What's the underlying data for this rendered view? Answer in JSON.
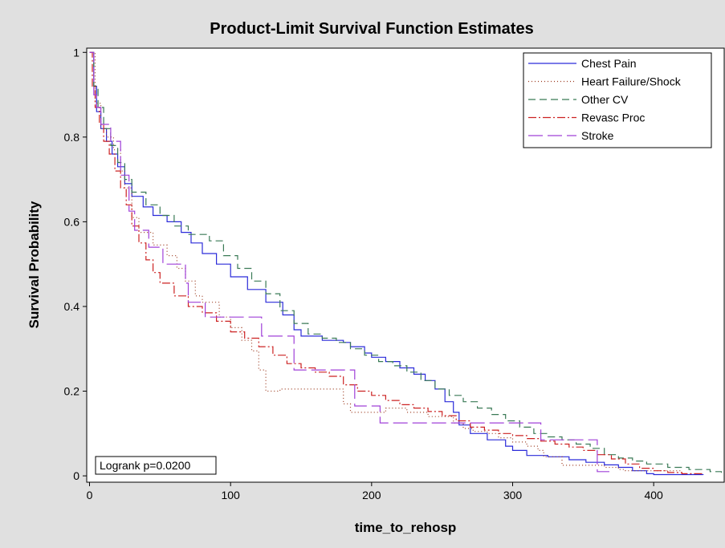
{
  "chart_data": {
    "type": "line",
    "title": "Product-Limit Survival Function Estimates",
    "xlabel": "time_to_rehosp",
    "ylabel": "Survival Probability",
    "xlim": [
      -2,
      450
    ],
    "ylim": [
      -0.015,
      1.01
    ],
    "xticks": [
      0,
      100,
      200,
      300,
      400
    ],
    "yticks": [
      0,
      0.2,
      0.4,
      0.6,
      0.8,
      1
    ],
    "ytick_labels": [
      "0",
      "0.2",
      "0.4",
      "0.6",
      "0.8",
      "1"
    ],
    "legend_position": "top-right",
    "annotation": "Logrank p=0.0200",
    "series": [
      {
        "name": "Chest Pain",
        "color": "#2b2bd9",
        "dash": "",
        "points": [
          [
            0,
            1
          ],
          [
            3,
            0.92
          ],
          [
            5,
            0.86
          ],
          [
            8,
            0.82
          ],
          [
            12,
            0.79
          ],
          [
            16,
            0.76
          ],
          [
            20,
            0.73
          ],
          [
            25,
            0.69
          ],
          [
            30,
            0.66
          ],
          [
            38,
            0.635
          ],
          [
            45,
            0.615
          ],
          [
            55,
            0.6
          ],
          [
            65,
            0.575
          ],
          [
            72,
            0.55
          ],
          [
            80,
            0.525
          ],
          [
            90,
            0.5
          ],
          [
            100,
            0.47
          ],
          [
            112,
            0.44
          ],
          [
            125,
            0.41
          ],
          [
            137,
            0.38
          ],
          [
            145,
            0.345
          ],
          [
            150,
            0.33
          ],
          [
            165,
            0.32
          ],
          [
            180,
            0.315
          ],
          [
            185,
            0.305
          ],
          [
            195,
            0.29
          ],
          [
            200,
            0.28
          ],
          [
            210,
            0.27
          ],
          [
            220,
            0.255
          ],
          [
            230,
            0.24
          ],
          [
            238,
            0.225
          ],
          [
            245,
            0.205
          ],
          [
            252,
            0.175
          ],
          [
            258,
            0.15
          ],
          [
            262,
            0.12
          ],
          [
            270,
            0.1
          ],
          [
            282,
            0.085
          ],
          [
            295,
            0.07
          ],
          [
            300,
            0.06
          ],
          [
            310,
            0.048
          ],
          [
            325,
            0.045
          ],
          [
            340,
            0.038
          ],
          [
            352,
            0.032
          ],
          [
            365,
            0.026
          ],
          [
            375,
            0.02
          ],
          [
            385,
            0.012
          ],
          [
            395,
            0.005
          ],
          [
            400,
            0.003
          ],
          [
            435,
            0.002
          ]
        ]
      },
      {
        "name": "Heart Failure/Shock",
        "color": "#9c3a1f",
        "dash": "1,3",
        "points": [
          [
            0,
            1
          ],
          [
            4,
            0.88
          ],
          [
            8,
            0.82
          ],
          [
            12,
            0.8
          ],
          [
            17,
            0.77
          ],
          [
            22,
            0.72
          ],
          [
            25,
            0.68
          ],
          [
            30,
            0.61
          ],
          [
            35,
            0.575
          ],
          [
            45,
            0.545
          ],
          [
            55,
            0.52
          ],
          [
            62,
            0.49
          ],
          [
            68,
            0.46
          ],
          [
            75,
            0.425
          ],
          [
            80,
            0.41
          ],
          [
            92,
            0.375
          ],
          [
            100,
            0.35
          ],
          [
            108,
            0.32
          ],
          [
            115,
            0.295
          ],
          [
            120,
            0.25
          ],
          [
            125,
            0.2
          ],
          [
            135,
            0.205
          ],
          [
            150,
            0.205
          ],
          [
            175,
            0.205
          ],
          [
            180,
            0.17
          ],
          [
            185,
            0.15
          ],
          [
            200,
            0.15
          ],
          [
            210,
            0.16
          ],
          [
            225,
            0.15
          ],
          [
            240,
            0.14
          ],
          [
            250,
            0.14
          ],
          [
            258,
            0.125
          ],
          [
            265,
            0.112
          ],
          [
            272,
            0.105
          ],
          [
            282,
            0.1
          ],
          [
            290,
            0.09
          ],
          [
            300,
            0.08
          ],
          [
            310,
            0.07
          ],
          [
            318,
            0.06
          ],
          [
            322,
            0.045
          ],
          [
            335,
            0.025
          ],
          [
            350,
            0.025
          ],
          [
            358,
            0.025
          ],
          [
            365,
            0.02
          ],
          [
            375,
            0.015
          ],
          [
            380,
            0.012
          ],
          [
            420,
            0.01
          ]
        ]
      },
      {
        "name": "Other CV",
        "color": "#3a7a56",
        "dash": "9,5",
        "points": [
          [
            0,
            1
          ],
          [
            3,
            0.92
          ],
          [
            6,
            0.87
          ],
          [
            10,
            0.82
          ],
          [
            15,
            0.78
          ],
          [
            20,
            0.74
          ],
          [
            25,
            0.7
          ],
          [
            30,
            0.67
          ],
          [
            40,
            0.64
          ],
          [
            50,
            0.615
          ],
          [
            60,
            0.59
          ],
          [
            70,
            0.57
          ],
          [
            85,
            0.555
          ],
          [
            95,
            0.52
          ],
          [
            105,
            0.49
          ],
          [
            115,
            0.46
          ],
          [
            125,
            0.43
          ],
          [
            135,
            0.39
          ],
          [
            145,
            0.36
          ],
          [
            155,
            0.335
          ],
          [
            165,
            0.325
          ],
          [
            175,
            0.315
          ],
          [
            185,
            0.3
          ],
          [
            195,
            0.285
          ],
          [
            205,
            0.27
          ],
          [
            215,
            0.26
          ],
          [
            225,
            0.245
          ],
          [
            235,
            0.225
          ],
          [
            245,
            0.205
          ],
          [
            255,
            0.19
          ],
          [
            265,
            0.175
          ],
          [
            275,
            0.16
          ],
          [
            285,
            0.145
          ],
          [
            295,
            0.13
          ],
          [
            305,
            0.115
          ],
          [
            315,
            0.1
          ],
          [
            325,
            0.092
          ],
          [
            335,
            0.085
          ],
          [
            345,
            0.075
          ],
          [
            355,
            0.065
          ],
          [
            365,
            0.05
          ],
          [
            375,
            0.042
          ],
          [
            385,
            0.035
          ],
          [
            395,
            0.028
          ],
          [
            410,
            0.02
          ],
          [
            425,
            0.015
          ],
          [
            440,
            0.01
          ],
          [
            448,
            0.003
          ]
        ]
      },
      {
        "name": "Revasc Proc",
        "color": "#cc2222",
        "dash": "10,3,2,3",
        "points": [
          [
            0,
            1
          ],
          [
            2,
            0.92
          ],
          [
            4,
            0.87
          ],
          [
            7,
            0.83
          ],
          [
            10,
            0.79
          ],
          [
            14,
            0.76
          ],
          [
            18,
            0.72
          ],
          [
            22,
            0.68
          ],
          [
            26,
            0.64
          ],
          [
            30,
            0.59
          ],
          [
            35,
            0.55
          ],
          [
            40,
            0.51
          ],
          [
            45,
            0.48
          ],
          [
            50,
            0.455
          ],
          [
            60,
            0.425
          ],
          [
            70,
            0.4
          ],
          [
            80,
            0.385
          ],
          [
            90,
            0.365
          ],
          [
            100,
            0.34
          ],
          [
            110,
            0.325
          ],
          [
            120,
            0.305
          ],
          [
            130,
            0.285
          ],
          [
            140,
            0.265
          ],
          [
            150,
            0.255
          ],
          [
            160,
            0.245
          ],
          [
            170,
            0.235
          ],
          [
            180,
            0.215
          ],
          [
            190,
            0.2
          ],
          [
            200,
            0.19
          ],
          [
            210,
            0.178
          ],
          [
            220,
            0.168
          ],
          [
            230,
            0.16
          ],
          [
            240,
            0.152
          ],
          [
            250,
            0.142
          ],
          [
            260,
            0.13
          ],
          [
            270,
            0.115
          ],
          [
            280,
            0.108
          ],
          [
            290,
            0.1
          ],
          [
            300,
            0.095
          ],
          [
            310,
            0.088
          ],
          [
            320,
            0.082
          ],
          [
            330,
            0.075
          ],
          [
            340,
            0.068
          ],
          [
            350,
            0.06
          ],
          [
            360,
            0.05
          ],
          [
            370,
            0.04
          ],
          [
            380,
            0.028
          ],
          [
            390,
            0.018
          ],
          [
            400,
            0.012
          ],
          [
            410,
            0.008
          ],
          [
            420,
            0.005
          ],
          [
            435,
            0.003
          ]
        ]
      },
      {
        "name": "Stroke",
        "color": "#a040d8",
        "dash": "18,6",
        "points": [
          [
            0,
            1
          ],
          [
            3,
            0.9
          ],
          [
            5,
            0.87
          ],
          [
            8,
            0.83
          ],
          [
            12,
            0.83
          ],
          [
            15,
            0.79
          ],
          [
            20,
            0.79
          ],
          [
            22,
            0.71
          ],
          [
            26,
            0.71
          ],
          [
            28,
            0.625
          ],
          [
            32,
            0.58
          ],
          [
            40,
            0.58
          ],
          [
            42,
            0.54
          ],
          [
            50,
            0.54
          ],
          [
            52,
            0.5
          ],
          [
            65,
            0.5
          ],
          [
            68,
            0.455
          ],
          [
            70,
            0.41
          ],
          [
            80,
            0.41
          ],
          [
            82,
            0.375
          ],
          [
            100,
            0.375
          ],
          [
            120,
            0.375
          ],
          [
            122,
            0.33
          ],
          [
            140,
            0.33
          ],
          [
            145,
            0.25
          ],
          [
            160,
            0.25
          ],
          [
            185,
            0.25
          ],
          [
            188,
            0.165
          ],
          [
            205,
            0.165
          ],
          [
            206,
            0.125
          ],
          [
            230,
            0.125
          ],
          [
            255,
            0.125
          ],
          [
            318,
            0.125
          ],
          [
            320,
            0.085
          ],
          [
            340,
            0.085
          ],
          [
            358,
            0.085
          ],
          [
            360,
            0.01
          ],
          [
            370,
            0.01
          ]
        ]
      }
    ]
  }
}
